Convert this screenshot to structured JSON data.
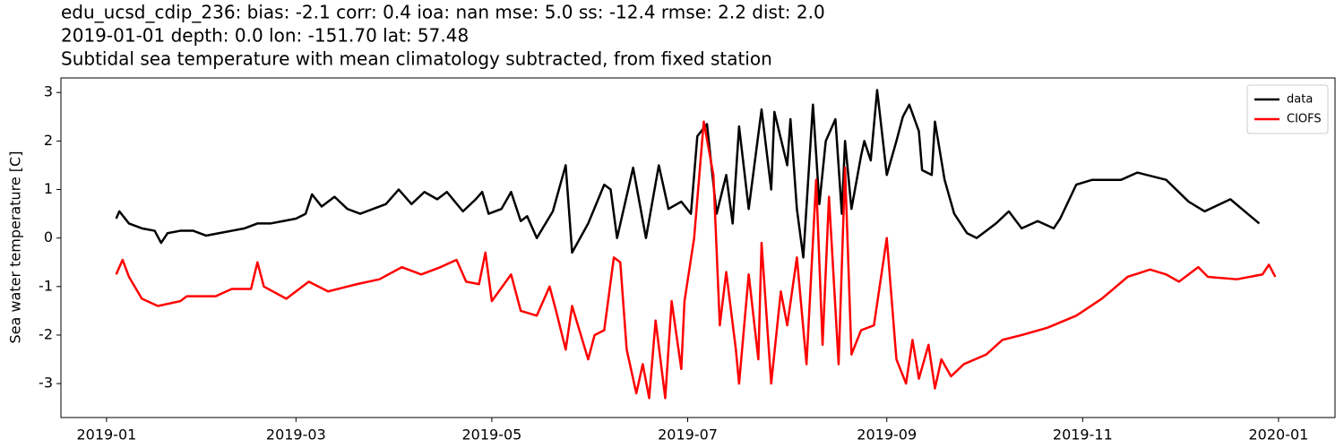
{
  "chart_data": {
    "type": "line",
    "title_lines": [
      "edu_ucsd_cdip_236: bias: -2.1  corr: 0.4  ioa: nan  mse: 5.0  ss: -12.4  rmse: 2.2  dist: 2.0",
      "2019-01-01 depth: 0.0 lon: -151.70 lat: 57.48",
      "Subtidal sea temperature with mean climatology subtracted, from fixed station"
    ],
    "y_label": "Sea water temperature [C]",
    "legend": "upper right",
    "grid": false,
    "xlim": [
      -14.2,
      382.6
    ],
    "xticks": [
      {
        "value": 0,
        "label": "2019-01"
      },
      {
        "value": 59,
        "label": "2019-03"
      },
      {
        "value": 120,
        "label": "2019-05"
      },
      {
        "value": 181,
        "label": "2019-07"
      },
      {
        "value": 243,
        "label": "2019-09"
      },
      {
        "value": 304,
        "label": "2019-11"
      },
      {
        "value": 365,
        "label": "2020-01"
      }
    ],
    "ylim": [
      -3.7,
      3.3
    ],
    "yticks": [
      -3,
      -2,
      -1,
      0,
      1,
      2,
      3
    ],
    "series": [
      {
        "name": "data",
        "color": "#000000",
        "x": [
          3,
          4,
          7,
          11,
          15,
          17,
          19,
          23,
          27,
          31,
          35,
          39,
          43,
          47,
          51,
          55,
          59,
          62,
          64,
          67,
          71,
          75,
          79,
          83,
          87,
          91,
          95,
          99,
          103,
          106,
          111,
          115,
          117,
          119,
          123,
          126,
          129,
          131,
          134,
          139,
          143,
          145,
          150,
          155,
          157,
          159,
          164,
          168,
          172,
          175,
          179,
          182,
          184,
          187,
          190,
          193,
          195,
          197,
          200,
          204,
          207,
          208,
          212,
          213,
          215,
          217,
          220,
          222,
          224,
          227,
          229,
          230,
          232,
          235,
          236,
          238,
          240,
          243,
          246,
          248,
          250,
          253,
          254,
          257,
          258,
          261,
          264,
          268,
          271,
          277,
          281,
          285,
          290,
          295,
          297,
          302,
          307,
          316,
          321,
          330,
          337,
          342,
          350,
          359
        ],
        "values": [
          0.4,
          0.55,
          0.3,
          0.2,
          0.15,
          -0.1,
          0.1,
          0.15,
          0.15,
          0.05,
          0.1,
          0.15,
          0.2,
          0.3,
          0.3,
          0.35,
          0.4,
          0.5,
          0.9,
          0.65,
          0.85,
          0.6,
          0.5,
          0.6,
          0.7,
          1.0,
          0.7,
          0.95,
          0.8,
          0.95,
          0.55,
          0.8,
          0.95,
          0.5,
          0.6,
          0.95,
          0.35,
          0.45,
          0.0,
          0.55,
          1.5,
          -0.3,
          0.3,
          1.1,
          1.0,
          0.0,
          1.45,
          0.0,
          1.5,
          0.6,
          0.75,
          0.5,
          2.1,
          2.35,
          0.5,
          1.3,
          0.3,
          2.3,
          0.6,
          2.65,
          1.0,
          2.6,
          1.5,
          2.45,
          0.6,
          -0.4,
          2.75,
          0.7,
          2.0,
          2.45,
          0.5,
          2.0,
          0.6,
          1.7,
          2.0,
          1.6,
          3.05,
          1.3,
          2.0,
          2.5,
          2.75,
          2.2,
          1.4,
          1.3,
          2.4,
          1.2,
          0.5,
          0.1,
          0.0,
          0.3,
          0.55,
          0.2,
          0.35,
          0.2,
          0.4,
          1.1,
          1.2,
          1.2,
          1.35,
          1.2,
          0.75,
          0.55,
          0.8,
          0.3
        ]
      },
      {
        "name": "CIOFS",
        "color": "#ff0000",
        "x": [
          3,
          5,
          7,
          11,
          16,
          23,
          25,
          34,
          39,
          45,
          47,
          49,
          56,
          63,
          69,
          78,
          85,
          92,
          98,
          104,
          109,
          112,
          116,
          118,
          120,
          126,
          129,
          134,
          138,
          140,
          143,
          145,
          150,
          152,
          155,
          158,
          160,
          162,
          165,
          167,
          169,
          171,
          174,
          176,
          179,
          180,
          183,
          186,
          189,
          191,
          193,
          196,
          197,
          200,
          203,
          204,
          207,
          210,
          212,
          215,
          218,
          221,
          223,
          225,
          228,
          230,
          232,
          235,
          239,
          243,
          246,
          249,
          251,
          253,
          256,
          258,
          260,
          263,
          267,
          274,
          279,
          285,
          293,
          302,
          310,
          318,
          325,
          330,
          334,
          340,
          343,
          352,
          360,
          362,
          364
        ],
        "values": [
          -0.75,
          -0.45,
          -0.8,
          -1.25,
          -1.4,
          -1.3,
          -1.2,
          -1.2,
          -1.05,
          -1.05,
          -0.5,
          -1.0,
          -1.25,
          -0.9,
          -1.1,
          -0.95,
          -0.85,
          -0.6,
          -0.75,
          -0.6,
          -0.45,
          -0.9,
          -0.95,
          -0.3,
          -1.3,
          -0.75,
          -1.5,
          -1.6,
          -1.0,
          -1.5,
          -2.3,
          -1.4,
          -2.5,
          -2.0,
          -1.9,
          -0.4,
          -0.5,
          -2.3,
          -3.2,
          -2.6,
          -3.3,
          -1.7,
          -3.3,
          -1.3,
          -2.7,
          -1.3,
          0.0,
          2.4,
          1.3,
          -1.8,
          -0.7,
          -2.3,
          -3.0,
          -0.75,
          -2.5,
          -0.1,
          -3.0,
          -1.1,
          -1.8,
          -0.4,
          -2.6,
          1.2,
          -2.2,
          0.85,
          -2.6,
          1.45,
          -2.4,
          -1.9,
          -1.8,
          0.0,
          -2.5,
          -3.0,
          -2.1,
          -2.9,
          -2.2,
          -3.1,
          -2.5,
          -2.85,
          -2.6,
          -2.4,
          -2.1,
          -2.0,
          -1.85,
          -1.6,
          -1.25,
          -0.8,
          -0.65,
          -0.75,
          -0.9,
          -0.6,
          -0.8,
          -0.85,
          -0.75,
          -0.55,
          -0.8
        ]
      }
    ]
  }
}
